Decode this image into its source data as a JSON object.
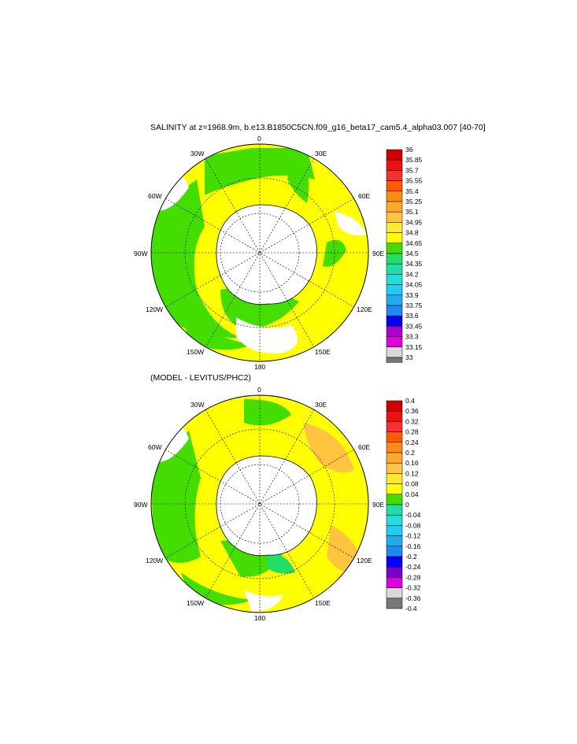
{
  "panel_top": {
    "title": "SALINITY at z=1968.9m, b.e13.B1850C5CN.f09_g16_beta17_cam5.4_alpha03.007 [40-70]",
    "lon_labels": {
      "n": "0",
      "e30": "30E",
      "e60": "60E",
      "e90": "90E",
      "e120": "120E",
      "e150": "150E",
      "s": "180",
      "w150": "150W",
      "w120": "120W",
      "w90": "90W",
      "w60": "60W",
      "w30": "30W"
    },
    "colorbar_labels": [
      "36",
      "35.85",
      "35.7",
      "35.55",
      "35.4",
      "35.25",
      "35.1",
      "34.95",
      "34.8",
      "34.65",
      "34.5",
      "34.35",
      "34.2",
      "34.05",
      "33.9",
      "33.75",
      "33.6",
      "33.45",
      "33.3",
      "33.15",
      "33"
    ],
    "colorbar_colors": [
      "#d00000",
      "#f01010",
      "#f83030",
      "#ff5a00",
      "#ff8c10",
      "#ffa830",
      "#ffc440",
      "#ffe830",
      "#ffff00",
      "#44dd00",
      "#22dd66",
      "#22ddaa",
      "#22dddd",
      "#22ccee",
      "#22aaee",
      "#2288ee",
      "#0000ff",
      "#aa00cc",
      "#dd00dd",
      "#d8d8d8",
      "#777777"
    ]
  },
  "panel_bottom": {
    "title": "(MODEL - LEVITUS/PHC2)",
    "lon_labels": {
      "n": "0",
      "e30": "30E",
      "e60": "60E",
      "e90": "90E",
      "e120": "120E",
      "e150": "150E",
      "s": "180",
      "w150": "150W",
      "w120": "120W",
      "w90": "90W",
      "w60": "60W",
      "w30": "30W"
    },
    "colorbar_labels": [
      "0.4",
      "0.36",
      "0.32",
      "0.28",
      "0.24",
      "0.2",
      "0.16",
      "0.12",
      "0.08",
      "0.04",
      "0",
      "-0.04",
      "-0.08",
      "-0.12",
      "-0.16",
      "-0.2",
      "-0.24",
      "-0.28",
      "-0.32",
      "-0.36",
      "-0.4"
    ],
    "colorbar_colors": [
      "#d00000",
      "#f01010",
      "#f83030",
      "#ff5a00",
      "#ff8c10",
      "#ffa830",
      "#ffc440",
      "#ffe830",
      "#ffff00",
      "#44dd00",
      "#22ddaa",
      "#22dddd",
      "#22ccee",
      "#22aaee",
      "#2288ee",
      "#0000ff",
      "#7700cc",
      "#dd00dd",
      "#d8d8d8",
      "#777777"
    ]
  }
}
